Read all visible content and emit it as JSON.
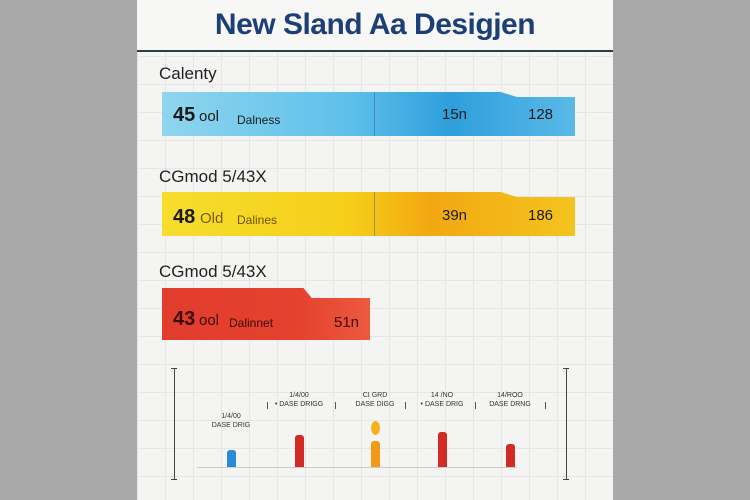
{
  "title": "New Sland Aa Desigjen",
  "colors": {
    "blue": "#3aa8e0",
    "yellow": "#f3b514",
    "red": "#e23c2d",
    "mini_red": "#d22b25",
    "mini_blue": "#2a8ad6",
    "mini_orange": "#f19a1a"
  },
  "chart_data": [
    {
      "type": "bar",
      "title": "New Sland Aa Desigjen",
      "rows": [
        {
          "label": "Calenty",
          "lead_value": "45",
          "lead_text": "ool",
          "sub_text": "Dalness",
          "mid_value": "15n",
          "end_value": "128",
          "color": "blue"
        },
        {
          "label": "CGmod 5/43X",
          "lead_value": "48",
          "lead_text": "Old",
          "sub_text": "Dalines",
          "mid_value": "39n",
          "end_value": "186",
          "color": "yellow"
        },
        {
          "label": "CGmod 5/43X",
          "lead_value": "43",
          "lead_text": "ool",
          "sub_text": "Dalinnet",
          "mid_value": "51n",
          "end_value": "",
          "color": "red"
        }
      ]
    },
    {
      "type": "bar",
      "columns": [
        {
          "label_top": "1/4/00",
          "label_bot": "DASE DRIG",
          "height": 0.3,
          "color": "mini_blue",
          "marker": "col"
        },
        {
          "label_top": "1/4/00",
          "label_bot": "• DASE DRIGG",
          "height": 0.55,
          "color": "mini_red",
          "marker": "col"
        },
        {
          "label_top": "CI GRD",
          "label_bot": "DASE DIGG",
          "height": 0.45,
          "color": "mini_orange",
          "marker": "col+dot"
        },
        {
          "label_top": "14 /NO",
          "label_bot": "• DASE DRIG",
          "height": 0.6,
          "color": "mini_red",
          "marker": "col"
        },
        {
          "label_top": "14/ROO",
          "label_bot": "DASE DRNG",
          "height": 0.4,
          "color": "mini_red",
          "marker": "col"
        }
      ]
    }
  ]
}
